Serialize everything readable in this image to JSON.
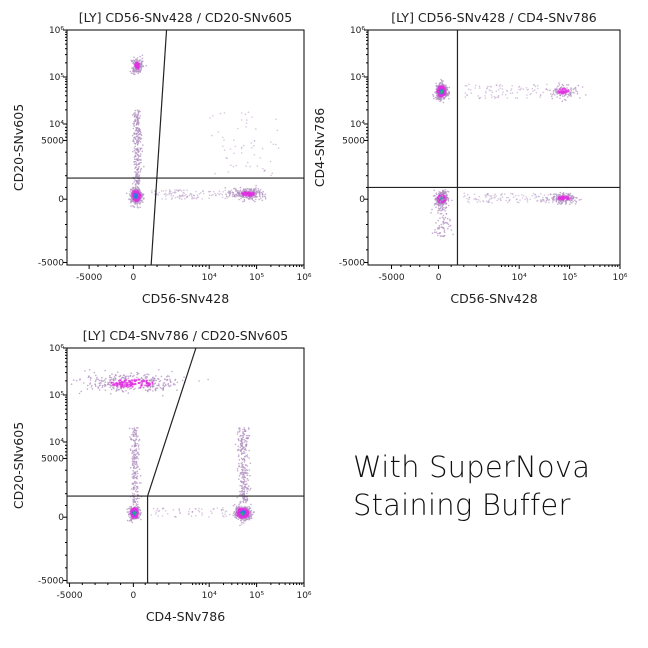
{
  "caption": {
    "line1": "With SuperNova",
    "line2": "Staining Buffer"
  },
  "colors": {
    "core": "#22c060",
    "mid": "#2a7de0",
    "dense": "#e030e0",
    "sparse": "#b090c0",
    "axis": "#000000"
  },
  "chart_data": [
    {
      "type": "scatter",
      "title": "[LY] CD56-SNv428  /  CD20-SNv605",
      "xlabel": "CD56-SNv428",
      "ylabel": "CD20-SNv605",
      "x_scale": "biexponential",
      "y_scale": "biexponential",
      "xlim": [
        -7500,
        1000000
      ],
      "ylim": [
        -5200,
        1000000
      ],
      "x_ticks": [
        {
          "v": -5000,
          "label": "-5000"
        },
        {
          "v": 0,
          "label": "0"
        },
        {
          "v": 10000,
          "label": "10⁴"
        },
        {
          "v": 100000,
          "label": "10⁵"
        },
        {
          "v": 1000000,
          "label": "10⁶"
        }
      ],
      "y_ticks": [
        {
          "v": -5000,
          "label": "-5000"
        },
        {
          "v": 0,
          "label": "0"
        },
        {
          "v": 5000,
          "label": "5000"
        },
        {
          "v": 10000,
          "label": "10⁴"
        },
        {
          "v": 100000,
          "label": "10⁵"
        },
        {
          "v": 1000000,
          "label": "10⁶"
        }
      ],
      "gates": [
        {
          "kind": "horizontal",
          "y": 1800
        },
        {
          "kind": "segment",
          "from": [
            1500,
            -5200
          ],
          "to": [
            2800,
            1000000
          ]
        }
      ],
      "populations": [
        {
          "x": [
            -300,
            700
          ],
          "y": [
            -300,
            900
          ],
          "n": 500,
          "dense": true
        },
        {
          "x": [
            -200,
            800
          ],
          "y": [
            120000,
            260000
          ],
          "n": 160,
          "dense": false
        },
        {
          "x": [
            -100,
            700
          ],
          "y": [
            1200,
            20000
          ],
          "n": 260,
          "dense": false,
          "streak": true
        },
        {
          "x": [
            30000,
            150000
          ],
          "y": [
            0,
            900
          ],
          "n": 260,
          "dense": false
        },
        {
          "x": [
            1500,
            30000
          ],
          "y": [
            0,
            800
          ],
          "n": 120,
          "dense": false,
          "sparse": true
        },
        {
          "x": [
            10000,
            300000
          ],
          "y": [
            2000,
            20000
          ],
          "n": 60,
          "dense": false,
          "sparse": true
        }
      ]
    },
    {
      "type": "scatter",
      "title": "[LY] CD56-SNv428  /  CD4-SNv786",
      "xlabel": "CD56-SNv428",
      "ylabel": "CD4-SNv786",
      "x_scale": "biexponential",
      "y_scale": "biexponential",
      "xlim": [
        -7500,
        1000000
      ],
      "ylim": [
        -5200,
        1000000
      ],
      "x_ticks": [
        {
          "v": -5000,
          "label": "-5000"
        },
        {
          "v": 0,
          "label": "0"
        },
        {
          "v": 10000,
          "label": "10⁴"
        },
        {
          "v": 100000,
          "label": "10⁵"
        },
        {
          "v": 1000000,
          "label": "10⁶"
        }
      ],
      "y_ticks": [
        {
          "v": -5000,
          "label": "-5000"
        },
        {
          "v": 0,
          "label": "0"
        },
        {
          "v": 5000,
          "label": "5000"
        },
        {
          "v": 10000,
          "label": "10⁴"
        },
        {
          "v": 100000,
          "label": "10⁵"
        },
        {
          "v": 1000000,
          "label": "10⁶"
        }
      ],
      "gates": [
        {
          "kind": "horizontal",
          "y": 1000
        },
        {
          "kind": "vertical",
          "x": 1500
        }
      ],
      "populations": [
        {
          "x": [
            -300,
            700
          ],
          "y": [
            35000,
            70000
          ],
          "n": 450,
          "dense": true
        },
        {
          "x": [
            -300,
            700
          ],
          "y": [
            -400,
            500
          ],
          "n": 300,
          "dense": true
        },
        {
          "x": [
            -500,
            1000
          ],
          "y": [
            -3000,
            800
          ],
          "n": 120,
          "dense": false,
          "streak": true
        },
        {
          "x": [
            40000,
            150000
          ],
          "y": [
            -300,
            500
          ],
          "n": 200,
          "dense": false
        },
        {
          "x": [
            40000,
            150000
          ],
          "y": [
            35000,
            70000
          ],
          "n": 120,
          "dense": false
        },
        {
          "x": [
            2000,
            40000
          ],
          "y": [
            -300,
            500
          ],
          "n": 110,
          "dense": false,
          "sparse": true
        },
        {
          "x": [
            2000,
            40000
          ],
          "y": [
            35000,
            70000
          ],
          "n": 90,
          "dense": false,
          "sparse": true
        }
      ]
    },
    {
      "type": "scatter",
      "title": "[LY] CD4-SNv786  /  CD20-SNv605",
      "xlabel": "CD4-SNv786",
      "ylabel": "CD20-SNv605",
      "x_scale": "biexponential",
      "y_scale": "biexponential",
      "xlim": [
        -5200,
        1000000
      ],
      "ylim": [
        -5200,
        1000000
      ],
      "x_ticks": [
        {
          "v": -5000,
          "label": "-5000"
        },
        {
          "v": 0,
          "label": "0"
        },
        {
          "v": 10000,
          "label": "10⁴"
        },
        {
          "v": 100000,
          "label": "10⁵"
        },
        {
          "v": 1000000,
          "label": "10⁶"
        }
      ],
      "y_ticks": [
        {
          "v": -5000,
          "label": "-5000"
        },
        {
          "v": 0,
          "label": "0"
        },
        {
          "v": 5000,
          "label": "5000"
        },
        {
          "v": 10000,
          "label": "10⁴"
        },
        {
          "v": 100000,
          "label": "10⁵"
        },
        {
          "v": 1000000,
          "label": "10⁶"
        }
      ],
      "gates": [
        {
          "kind": "horizontal",
          "y": 1800
        },
        {
          "kind": "vertical-below",
          "x": 1200,
          "y": 1800
        },
        {
          "kind": "segment",
          "from": [
            1200,
            1800
          ],
          "to": [
            6000,
            1000000
          ]
        }
      ],
      "populations": [
        {
          "x": [
            -300,
            500
          ],
          "y": [
            -200,
            900
          ],
          "n": 350,
          "dense": true
        },
        {
          "x": [
            35000,
            75000
          ],
          "y": [
            -200,
            900
          ],
          "n": 450,
          "dense": true
        },
        {
          "x": [
            -200,
            500
          ],
          "y": [
            1200,
            20000
          ],
          "n": 200,
          "dense": false,
          "streak": true
        },
        {
          "x": [
            40000,
            70000
          ],
          "y": [
            1200,
            20000
          ],
          "n": 260,
          "dense": false,
          "streak": true
        },
        {
          "x": [
            -4000,
            4000
          ],
          "y": [
            110000,
            280000
          ],
          "n": 400,
          "dense": false
        },
        {
          "x": [
            1500,
            30000
          ],
          "y": [
            0,
            800
          ],
          "n": 60,
          "dense": false,
          "sparse": true
        }
      ]
    }
  ]
}
